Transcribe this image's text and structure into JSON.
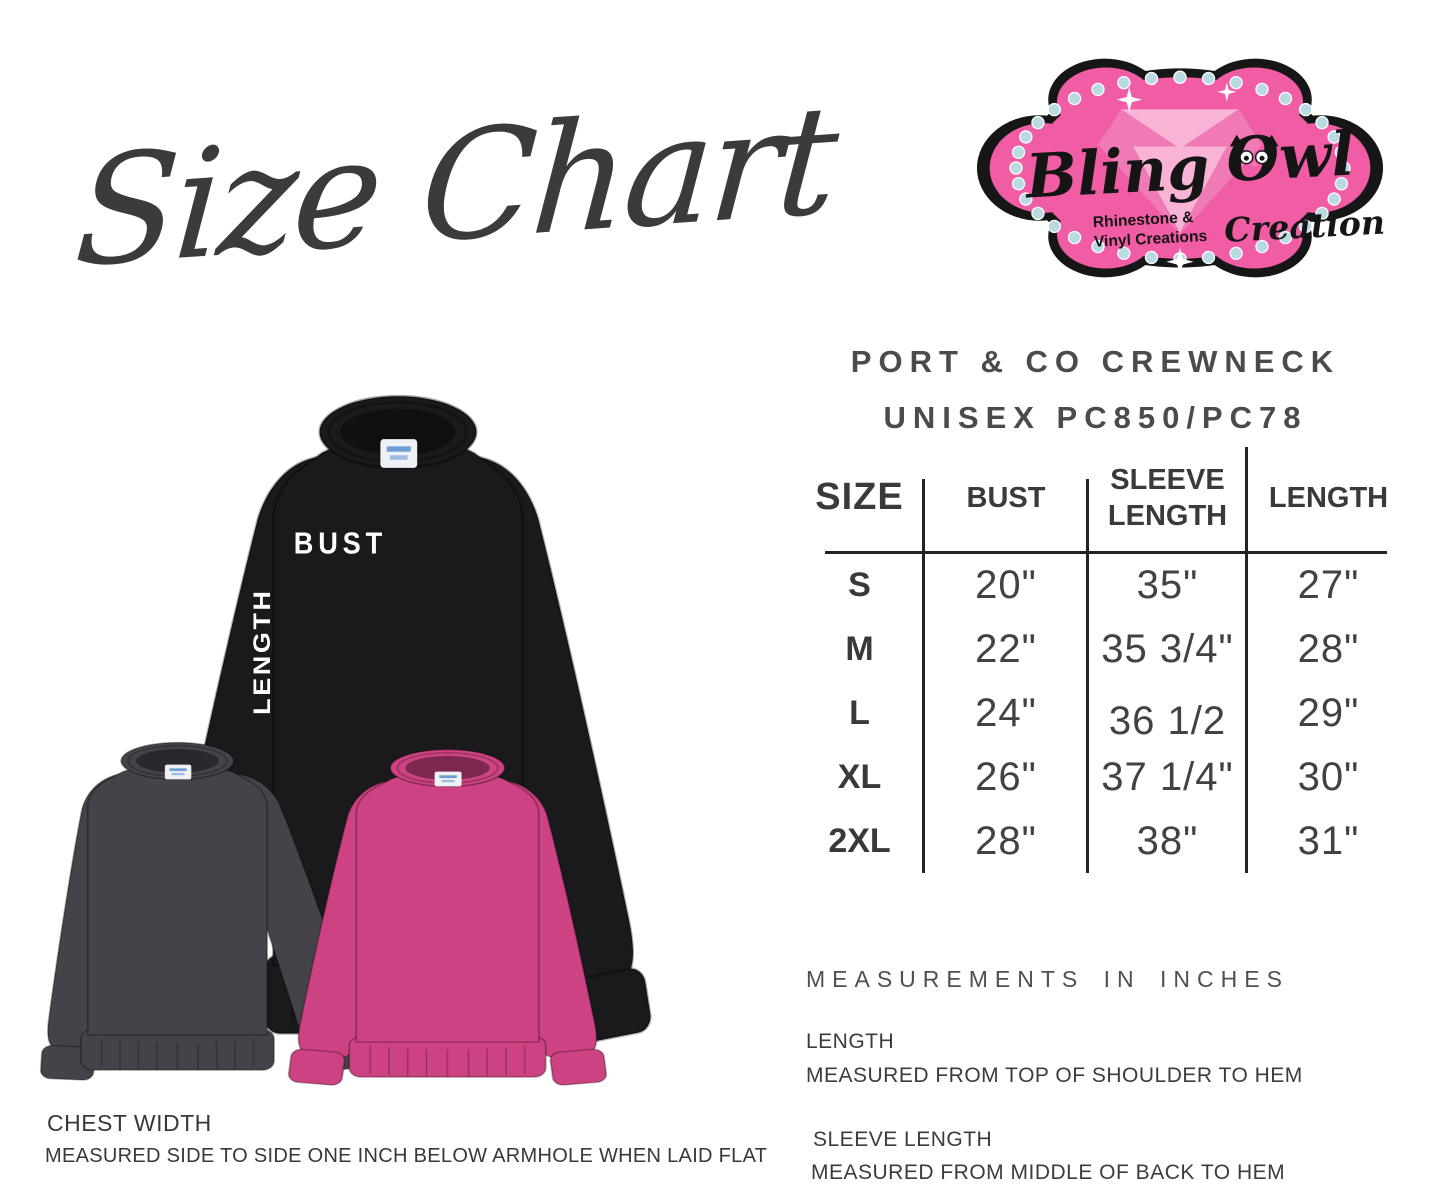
{
  "page": {
    "title_script": "Size Chart"
  },
  "logo": {
    "brand_word1": "Bling",
    "brand_word2": "Owl",
    "brand_word3": "Creations",
    "tagline_line1": "Rhinestone &",
    "tagline_line2": "Vinyl Creations",
    "colors": {
      "pink": "#f05da4",
      "light_pink": "#f9b4d5",
      "mid_pink": "#ef7ab5",
      "outline_black": "#161616",
      "rhinestone_blue": "#b9dae0"
    }
  },
  "product": {
    "title_line1": "PORT & CO CREWNECK",
    "title_line2": "UNISEX PC850/PC78"
  },
  "size_table": {
    "columns": [
      "SIZE",
      "BUST",
      "SLEEVE LENGTH",
      "LENGTH"
    ],
    "rows": [
      {
        "size": "S",
        "bust": "20\"",
        "sleeve_length": "35\"",
        "length": "27\""
      },
      {
        "size": "M",
        "bust": "22\"",
        "sleeve_length": "35 3/4\"",
        "length": "28\""
      },
      {
        "size": "L",
        "bust": "24\"",
        "sleeve_length": "36 1/2",
        "length": "29\""
      },
      {
        "size": "XL",
        "bust": "26\"",
        "sleeve_length": "37 1/4\"",
        "length": "30\""
      },
      {
        "size": "2XL",
        "bust": "28\"",
        "sleeve_length": "38\"",
        "length": "31\""
      }
    ],
    "units_note": "MEASUREMENTS IN INCHES"
  },
  "definitions": {
    "length_label": "LENGTH",
    "length_desc": "MEASURED FROM TOP OF SHOULDER TO HEM",
    "sleeve_label": "SLEEVE LENGTH",
    "sleeve_desc": "MEASURED FROM MIDDLE OF BACK TO HEM",
    "chest_label": "CHEST WIDTH",
    "chest_desc": "MEASURED SIDE TO SIDE ONE INCH BELOW ARMHOLE WHEN LAID FLAT"
  },
  "shirts": {
    "black": {
      "color": "#1a191c",
      "bust_label": "BUST",
      "length_label": "LENGTH"
    },
    "gray": {
      "color": "#464249"
    },
    "pink": {
      "color": "#cc4282"
    }
  }
}
